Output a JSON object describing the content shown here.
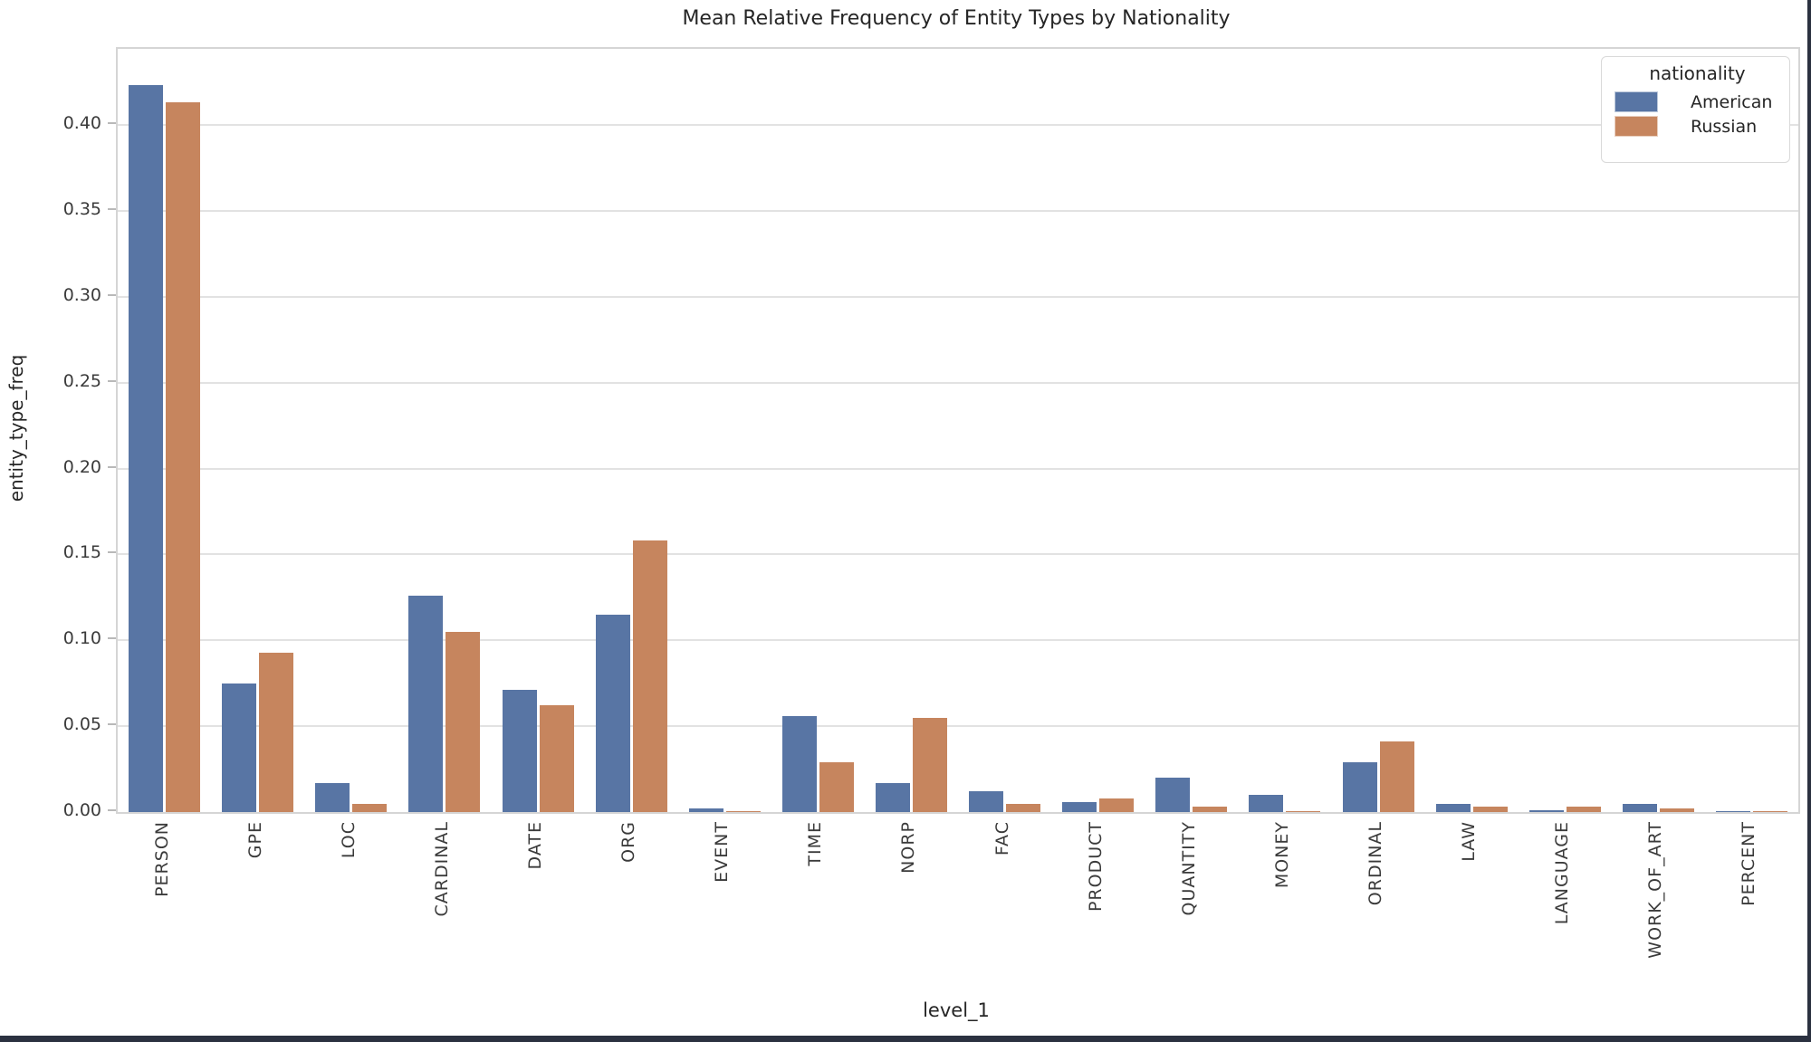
{
  "title": "Mean Relative Frequency of Entity Types by Nationality",
  "axes": {
    "x_label": "level_1",
    "y_label": "entity_type_freq",
    "y_ticks": [
      "0.00",
      "0.05",
      "0.10",
      "0.15",
      "0.20",
      "0.25",
      "0.30",
      "0.35",
      "0.40"
    ]
  },
  "legend": {
    "title": "nationality",
    "entries": [
      {
        "label": "American",
        "color": "#5875A4"
      },
      {
        "label": "Russian",
        "color": "#C6855E"
      }
    ]
  },
  "chart_data": {
    "type": "bar",
    "title": "Mean Relative Frequency of Entity Types by Nationality",
    "xlabel": "level_1",
    "ylabel": "entity_type_freq",
    "ylim": [
      0,
      0.4443
    ],
    "grid": true,
    "legend_position": "upper right",
    "categories": [
      "PERSON",
      "GPE",
      "LOC",
      "CARDINAL",
      "DATE",
      "ORG",
      "EVENT",
      "TIME",
      "NORP",
      "FAC",
      "PRODUCT",
      "QUANTITY",
      "MONEY",
      "ORDINAL",
      "LAW",
      "LANGUAGE",
      "WORK_OF_ART",
      "PERCENT"
    ],
    "series": [
      {
        "name": "American",
        "color": "#5875A4",
        "values": [
          0.423,
          0.075,
          0.017,
          0.126,
          0.071,
          0.115,
          0.002,
          0.056,
          0.017,
          0.012,
          0.006,
          0.02,
          0.01,
          0.029,
          0.005,
          0.001,
          0.005,
          0.0005
        ]
      },
      {
        "name": "Russian",
        "color": "#C6855E",
        "values": [
          0.413,
          0.093,
          0.005,
          0.105,
          0.062,
          0.158,
          0.0005,
          0.029,
          0.055,
          0.005,
          0.008,
          0.003,
          0.0005,
          0.041,
          0.003,
          0.003,
          0.002,
          0.0005
        ]
      }
    ]
  }
}
